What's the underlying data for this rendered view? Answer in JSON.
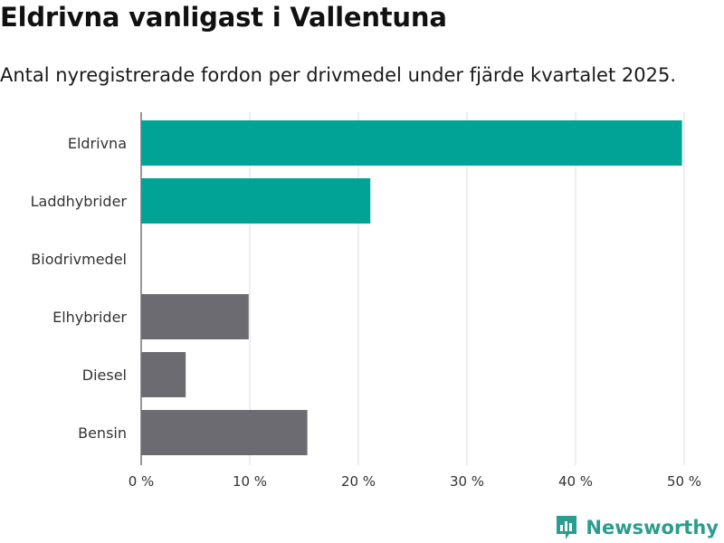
{
  "title": "Eldrivna vanligast i Vallentuna",
  "subtitle": "Antal nyregistrerade fordon per drivmedel under fjärde kvartalet 2025.",
  "brand": {
    "name": "Newsworthy"
  },
  "colors": {
    "highlight": "#00a396",
    "default": "#6c6b71",
    "grid": "#dddddd",
    "brand": "#2a9d8f"
  },
  "chart_data": {
    "type": "bar",
    "orientation": "horizontal",
    "categories": [
      "Eldrivna",
      "Laddhybrider",
      "Biodrivmedel",
      "Elhybrider",
      "Diesel",
      "Bensin"
    ],
    "values": [
      49.8,
      21.1,
      0,
      9.9,
      4.1,
      15.3
    ],
    "highlighted": [
      true,
      true,
      false,
      false,
      false,
      false
    ],
    "xlim": [
      0,
      50
    ],
    "xticks": [
      0,
      10,
      20,
      30,
      40,
      50
    ],
    "xtick_labels": [
      "0 %",
      "10 %",
      "20 %",
      "30 %",
      "40 %",
      "50 %"
    ],
    "unit": "%",
    "grid": true
  }
}
